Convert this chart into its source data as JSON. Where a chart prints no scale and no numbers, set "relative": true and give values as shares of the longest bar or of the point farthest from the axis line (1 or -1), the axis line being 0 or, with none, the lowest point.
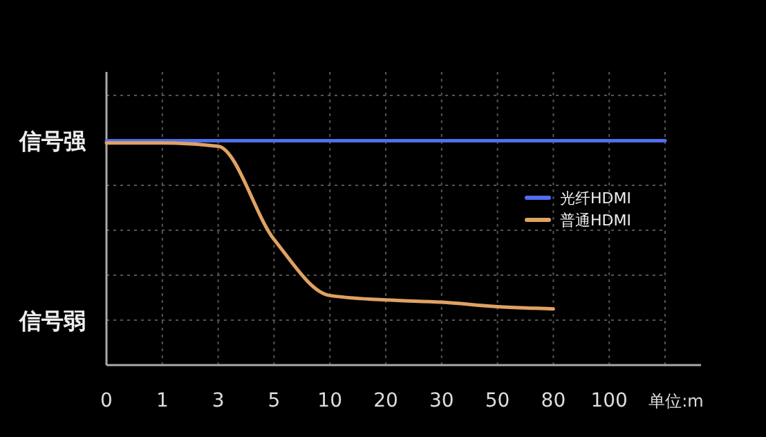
{
  "chart_data": {
    "type": "line",
    "relative": true,
    "xlabel": "单位:m",
    "categories": [
      "0",
      "1",
      "3",
      "5",
      "10",
      "20",
      "30",
      "50",
      "80",
      "100",
      null
    ],
    "series": [
      {
        "name": "光纤HDMI",
        "color": "#4f6ff0",
        "values": [
          1,
          1,
          1,
          1,
          1,
          1,
          1,
          1,
          1,
          1,
          1
        ]
      },
      {
        "name": "普通HDMI",
        "color": "#e0a262",
        "values": [
          0.99,
          0.99,
          0.975,
          0.56,
          0.31,
          0.29,
          0.28,
          0.26,
          0.25,
          null,
          null
        ]
      }
    ],
    "annotations": [
      "信号强",
      "信号弱"
    ],
    "grid": true,
    "legend": "right",
    "line_style": "solid",
    "marker": "none"
  }
}
